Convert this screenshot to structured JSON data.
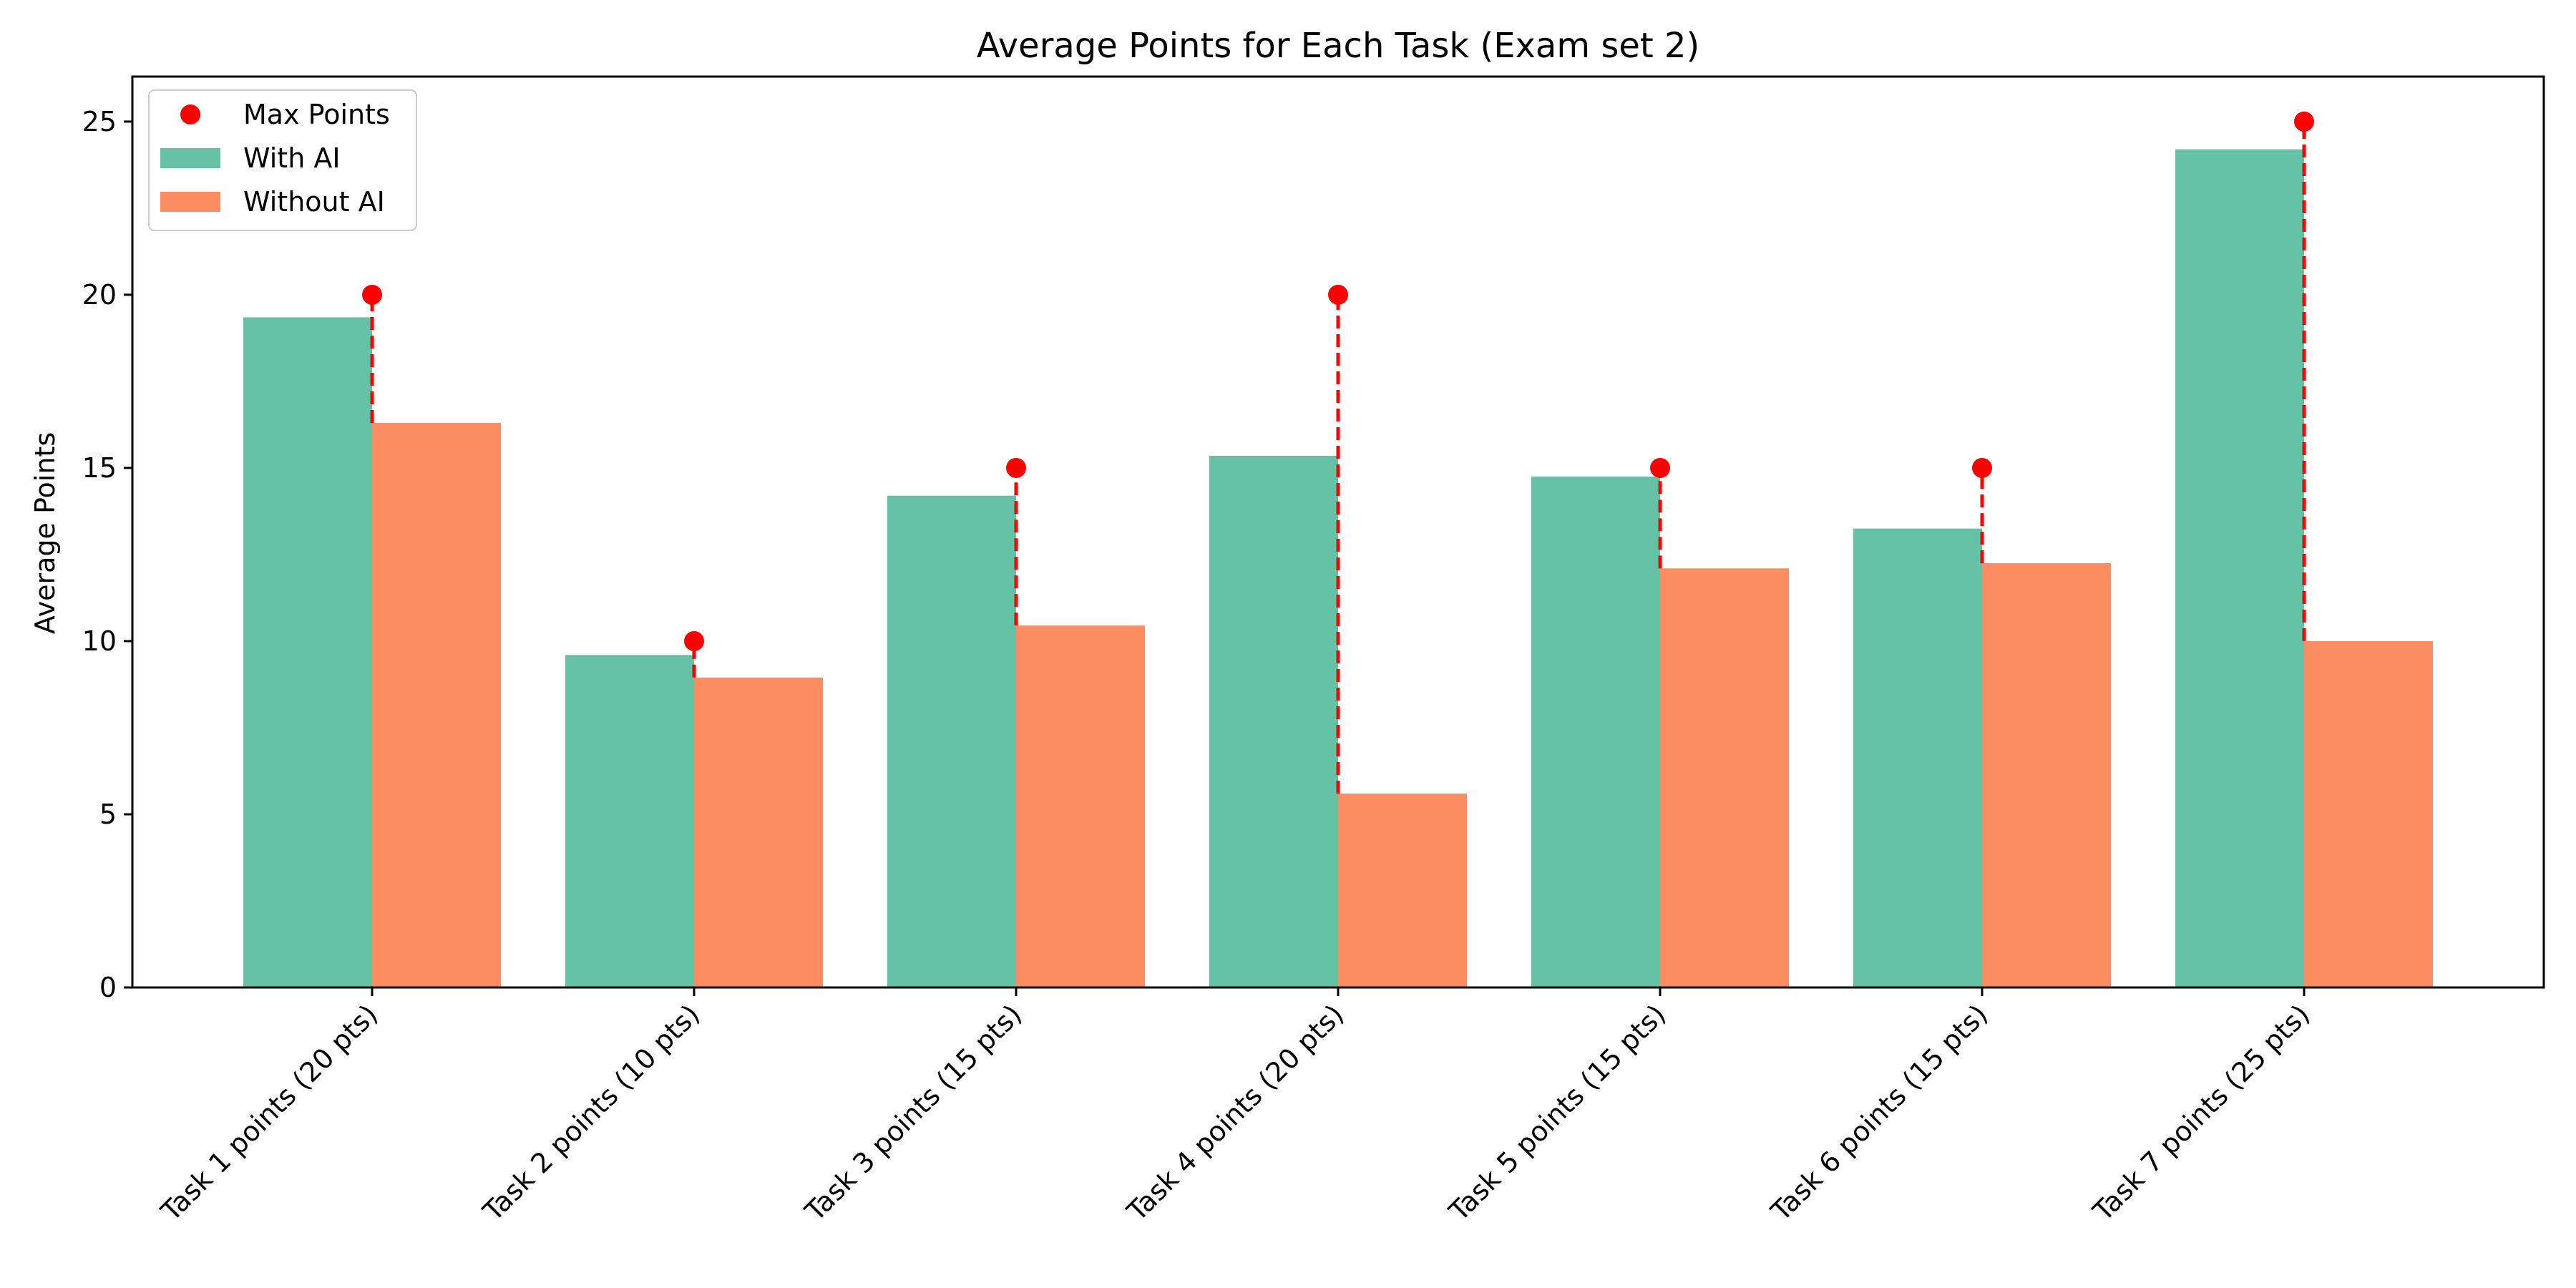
{
  "chart_data": {
    "type": "bar",
    "title": "Average Points for Each Task (Exam set 2)",
    "xlabel": "",
    "ylabel": "Average Points",
    "ylim": [
      0,
      26.3
    ],
    "yticks": [
      0,
      5,
      10,
      15,
      20,
      25
    ],
    "categories": [
      "Task 1 points (20 pts)",
      "Task 2 points (10 pts)",
      "Task 3 points (15 pts)",
      "Task 4 points (20 pts)",
      "Task 5 points (15 pts)",
      "Task 6 points (15 pts)",
      "Task 7 points (25 pts)"
    ],
    "series": [
      {
        "name": "With AI",
        "color": "#66c2a5",
        "values": [
          19.35,
          9.6,
          14.2,
          15.35,
          14.75,
          13.25,
          24.2
        ]
      },
      {
        "name": "Without AI",
        "color": "#fc8d62",
        "values": [
          16.3,
          8.95,
          10.45,
          5.6,
          12.1,
          12.25,
          10.0
        ]
      }
    ],
    "max_points": {
      "name": "Max Points",
      "color": "#ff0000",
      "values": [
        20,
        10,
        15,
        20,
        15,
        15,
        25
      ]
    },
    "legend_position": "top-left",
    "grid": false
  }
}
